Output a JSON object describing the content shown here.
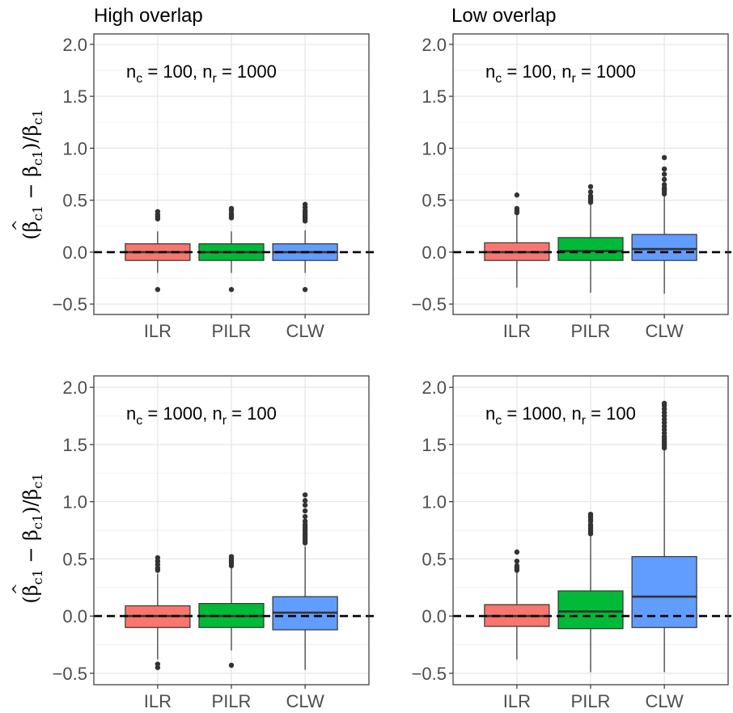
{
  "chart_data": [
    {
      "type": "box",
      "title": "High overlap",
      "ylabel": "(β̂c1 − βc1)/βc1",
      "annotation": {
        "n_c": "100",
        "n_r": "1000"
      },
      "categories": [
        "ILR",
        "PILR",
        "CLW"
      ],
      "colors": [
        "#F8766D",
        "#00BA38",
        "#619CFF"
      ],
      "ylim": [
        -0.6,
        2.1
      ],
      "yticks": [
        -0.5,
        0.0,
        0.5,
        1.0,
        1.5,
        2.0
      ],
      "ytick_labels": [
        "−0.5",
        "0.0",
        "0.5",
        "1.0",
        "1.5",
        "2.0"
      ],
      "reference_line": 0,
      "boxes": [
        {
          "q1": -0.08,
          "median": 0.0,
          "q3": 0.08,
          "whisker_low": -0.2,
          "whisker_high": 0.2,
          "outliers": [
            0.32,
            0.34,
            0.36,
            0.39,
            -0.36
          ]
        },
        {
          "q1": -0.08,
          "median": 0.0,
          "q3": 0.08,
          "whisker_low": -0.2,
          "whisker_high": 0.2,
          "outliers": [
            0.33,
            0.35,
            0.37,
            0.4,
            0.42,
            -0.36
          ]
        },
        {
          "q1": -0.08,
          "median": 0.0,
          "q3": 0.08,
          "whisker_low": -0.2,
          "whisker_high": 0.21,
          "outliers": [
            0.3,
            0.32,
            0.34,
            0.36,
            0.38,
            0.4,
            0.43,
            0.46,
            -0.36
          ]
        }
      ]
    },
    {
      "type": "box",
      "title": "Low overlap",
      "ylabel": "",
      "annotation": {
        "n_c": "100",
        "n_r": "1000"
      },
      "categories": [
        "ILR",
        "PILR",
        "CLW"
      ],
      "colors": [
        "#F8766D",
        "#00BA38",
        "#619CFF"
      ],
      "ylim": [
        -0.6,
        2.1
      ],
      "yticks": [
        -0.5,
        0.0,
        0.5,
        1.0,
        1.5,
        2.0
      ],
      "ytick_labels": [
        "−0.5",
        "0.0",
        "0.5",
        "1.0",
        "1.5",
        "2.0"
      ],
      "reference_line": 0,
      "boxes": [
        {
          "q1": -0.08,
          "median": 0.0,
          "q3": 0.09,
          "whisker_low": -0.34,
          "whisker_high": 0.36,
          "outliers": [
            0.38,
            0.4,
            0.42,
            0.55
          ]
        },
        {
          "q1": -0.08,
          "median": 0.01,
          "q3": 0.14,
          "whisker_low": -0.39,
          "whisker_high": 0.46,
          "outliers": [
            0.48,
            0.5,
            0.52,
            0.54,
            0.58,
            0.63
          ]
        },
        {
          "q1": -0.08,
          "median": 0.03,
          "q3": 0.17,
          "whisker_low": -0.4,
          "whisker_high": 0.54,
          "outliers": [
            0.56,
            0.58,
            0.6,
            0.62,
            0.65,
            0.7,
            0.75,
            0.8,
            0.91
          ]
        }
      ]
    },
    {
      "type": "box",
      "title": "",
      "ylabel": "(β̂c1 − βc1)/βc1",
      "annotation": {
        "n_c": "1000",
        "n_r": "100"
      },
      "categories": [
        "ILR",
        "PILR",
        "CLW"
      ],
      "colors": [
        "#F8766D",
        "#00BA38",
        "#619CFF"
      ],
      "ylim": [
        -0.6,
        2.1
      ],
      "yticks": [
        -0.5,
        0.0,
        0.5,
        1.0,
        1.5,
        2.0
      ],
      "ytick_labels": [
        "−0.5",
        "0.0",
        "0.5",
        "1.0",
        "1.5",
        "2.0"
      ],
      "reference_line": 0,
      "boxes": [
        {
          "q1": -0.1,
          "median": 0.0,
          "q3": 0.09,
          "whisker_low": -0.38,
          "whisker_high": 0.37,
          "outliers": [
            0.4,
            0.42,
            0.45,
            0.48,
            0.51,
            -0.42,
            -0.45
          ]
        },
        {
          "q1": -0.1,
          "median": 0.0,
          "q3": 0.11,
          "whisker_low": -0.3,
          "whisker_high": 0.42,
          "outliers": [
            0.44,
            0.46,
            0.48,
            0.5,
            0.52,
            -0.43
          ]
        },
        {
          "q1": -0.12,
          "median": 0.03,
          "q3": 0.17,
          "whisker_low": -0.47,
          "whisker_high": 0.61,
          "outliers": [
            0.64,
            0.66,
            0.68,
            0.7,
            0.72,
            0.74,
            0.76,
            0.78,
            0.8,
            0.83,
            0.87,
            0.92,
            0.97,
            1.01,
            1.06
          ]
        }
      ]
    },
    {
      "type": "box",
      "title": "",
      "ylabel": "",
      "annotation": {
        "n_c": "1000",
        "n_r": "100"
      },
      "categories": [
        "ILR",
        "PILR",
        "CLW"
      ],
      "colors": [
        "#F8766D",
        "#00BA38",
        "#619CFF"
      ],
      "ylim": [
        -0.6,
        2.1
      ],
      "yticks": [
        -0.5,
        0.0,
        0.5,
        1.0,
        1.5,
        2.0
      ],
      "ytick_labels": [
        "−0.5",
        "0.0",
        "0.5",
        "1.0",
        "1.5",
        "2.0"
      ],
      "reference_line": 0,
      "boxes": [
        {
          "q1": -0.09,
          "median": 0.0,
          "q3": 0.1,
          "whisker_low": -0.38,
          "whisker_high": 0.38,
          "outliers": [
            0.4,
            0.42,
            0.44,
            0.48,
            0.56
          ]
        },
        {
          "q1": -0.11,
          "median": 0.04,
          "q3": 0.22,
          "whisker_low": -0.49,
          "whisker_high": 0.7,
          "outliers": [
            0.72,
            0.74,
            0.76,
            0.78,
            0.8,
            0.83,
            0.85,
            0.87,
            0.89
          ]
        },
        {
          "q1": -0.1,
          "median": 0.17,
          "q3": 0.52,
          "whisker_low": -0.49,
          "whisker_high": 1.45,
          "outliers": [
            1.47,
            1.49,
            1.51,
            1.53,
            1.55,
            1.57,
            1.6,
            1.63,
            1.66,
            1.69,
            1.72,
            1.75,
            1.78,
            1.81,
            1.84,
            1.86
          ]
        }
      ]
    }
  ]
}
